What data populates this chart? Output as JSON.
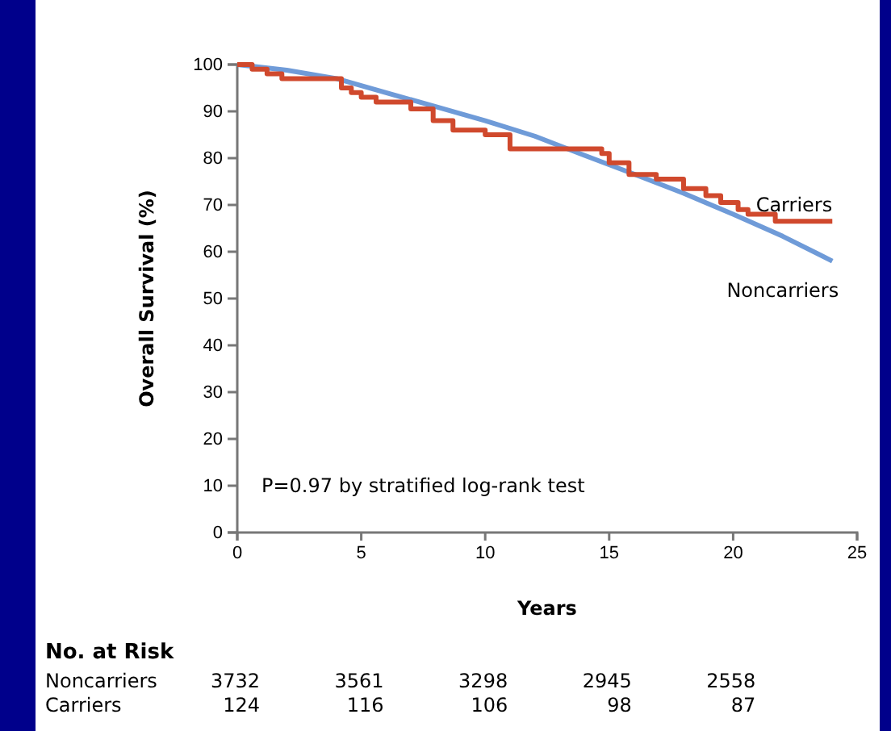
{
  "chart_data": {
    "type": "line",
    "ylabel": "Overall Survival (%)",
    "xlabel": "Years",
    "xlim": [
      0,
      25
    ],
    "xticks": [
      0,
      5,
      10,
      15,
      20,
      25
    ],
    "ylim": [
      0,
      100
    ],
    "yticks": [
      0,
      10,
      20,
      30,
      40,
      50,
      60,
      70,
      80,
      90,
      100
    ],
    "series": [
      {
        "name": "Noncarriers",
        "type": "line",
        "color": "#6f9bd8",
        "x": [
          0,
          2,
          4,
          6,
          8,
          10,
          12,
          14,
          16,
          18,
          20,
          22,
          24
        ],
        "values": [
          100,
          98.8,
          97,
          94,
          91,
          88,
          84.7,
          80.6,
          76.6,
          72.5,
          68,
          63.3,
          58
        ]
      },
      {
        "name": "Carriers",
        "type": "step",
        "color": "#d0492d",
        "x": [
          0,
          0.6,
          1.2,
          1.8,
          4.2,
          4.6,
          5,
          5.6,
          7,
          7.9,
          8.7,
          10,
          11,
          14.7,
          15,
          15.8,
          16.9,
          18,
          18.9,
          19.5,
          20.2,
          20.6,
          21.7,
          24
        ],
        "values": [
          100,
          99,
          98,
          97,
          95,
          94,
          93,
          92,
          90.5,
          88,
          86,
          85,
          82,
          81,
          79,
          76.5,
          75.5,
          73.5,
          72,
          70.5,
          69,
          68,
          66.5,
          66.5
        ]
      }
    ],
    "annotations": [
      "P=0.97 by stratified log-rank test",
      "No. at Risk",
      "Noncarriers 3732 3561 3298 2945 2558",
      "Carriers 124 116 106 98 87"
    ]
  }
}
